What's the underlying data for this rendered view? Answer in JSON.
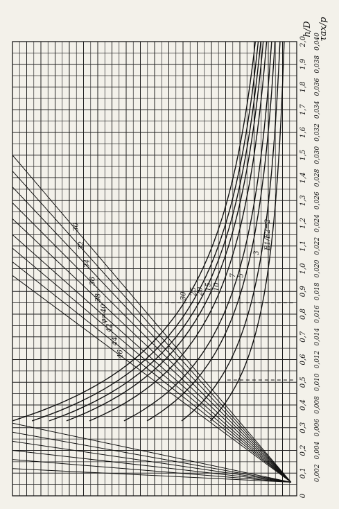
{
  "chart_data": {
    "type": "line",
    "orientation": "rotated-90",
    "axes": {
      "primary": {
        "label": "h/D",
        "ticks": [
          "0",
          "0,1",
          "0,2",
          "0,3",
          "0,4",
          "0,5",
          "0,6",
          "0,7",
          "0,8",
          "0,9",
          "1,0",
          "1,1",
          "1,2",
          "1,3",
          "1,4",
          "1,5",
          "1,6",
          "1,7",
          "1,8",
          "1,9",
          "2,0"
        ],
        "range": [
          0,
          2.0
        ]
      },
      "secondary": {
        "label": "τax/p",
        "ticks": [
          "0,002",
          "0,004",
          "0,006",
          "0,008",
          "0,010",
          "0,012",
          "0,014",
          "0,016",
          "0,018",
          "0,020",
          "0,022",
          "0,024",
          "0,026",
          "0,028",
          "0,030",
          "0,032",
          "0,034",
          "0,036",
          "0,038",
          "0,040"
        ],
        "range": [
          0,
          0.04
        ]
      }
    },
    "family_label": "E1/E2",
    "curves": [
      {
        "label": "E1/E2=2",
        "k": 0.3,
        "label_h": 1.15
      },
      {
        "label": "3",
        "k": 0.4,
        "label_h": 1.07
      },
      {
        "label": "5",
        "k": 0.52,
        "label_h": 0.97
      },
      {
        "label": "7",
        "k": 0.6,
        "label_h": 0.97
      },
      {
        "label": "10",
        "k": 0.72,
        "label_h": 0.92
      },
      {
        "label": "15",
        "k": 0.8,
        "label_h": 0.92
      },
      {
        "label": "20",
        "k": 0.86,
        "label_h": 0.9
      },
      {
        "label": "25",
        "k": 0.92,
        "label_h": 0.9
      },
      {
        "label": "30",
        "k": 0.99,
        "label_h": 0.88
      }
    ],
    "rays": [
      {
        "label": "30",
        "end_h": 1.5
      },
      {
        "label": "32",
        "end_h": 1.43
      },
      {
        "label": "34",
        "end_h": 1.36
      },
      {
        "label": "36",
        "end_h": 1.29
      },
      {
        "label": "38",
        "end_h": 1.22
      },
      {
        "label": "φ=40",
        "end_h": 1.15
      },
      {
        "label": "42",
        "end_h": 1.09
      },
      {
        "label": "44",
        "end_h": 1.03
      },
      {
        "label": "46",
        "end_h": 0.97
      }
    ],
    "guide_lines": [
      {
        "h": 0.51,
        "tau": 0.0005,
        "to_tau": 0.01
      },
      {
        "h": 0.85,
        "tau": 0.0005,
        "to_tau": 0.02
      }
    ],
    "grid": true
  }
}
